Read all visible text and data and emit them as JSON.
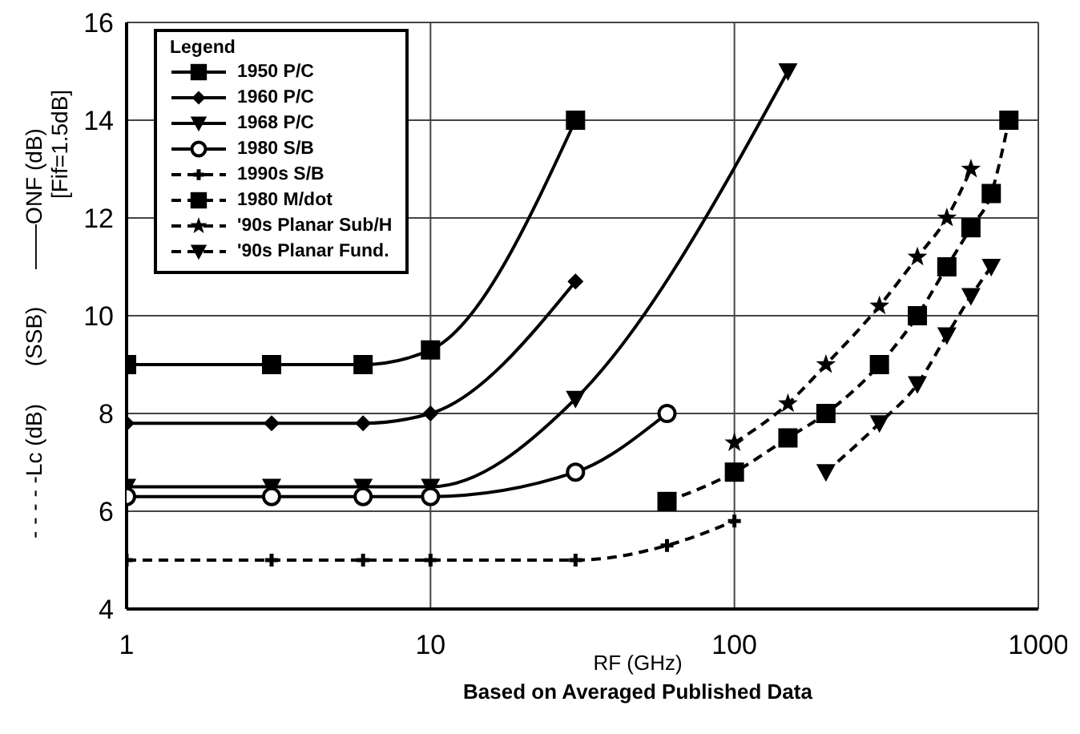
{
  "chart_data": {
    "type": "line",
    "xlabel": "RF (GHz)",
    "ylabel": "- - - - -Lc (dB)      (SSB)      ——ONF (dB)",
    "legend_title": "Legend",
    "legend": "top left",
    "grid": true,
    "log": "x",
    "xlim": [
      1,
      1000
    ],
    "xticks": [
      1,
      10,
      100,
      1000
    ],
    "ylim": [
      4,
      16
    ],
    "yticks": [
      4,
      6,
      8,
      10,
      12,
      14,
      16
    ],
    "annotations": [
      "[Fif=1.5dB]",
      "Based on Averaged Published Data"
    ],
    "series": [
      {
        "name": "1950 P/C",
        "color": "#000000",
        "marker": "square",
        "line_style": "solid",
        "x": [
          1,
          3,
          6,
          10,
          30
        ],
        "values": [
          9.0,
          9.0,
          9.0,
          9.3,
          14.0
        ]
      },
      {
        "name": "1960 P/C",
        "color": "#000000",
        "marker": "diamond",
        "line_style": "solid",
        "x": [
          1,
          3,
          6,
          10,
          30
        ],
        "values": [
          7.8,
          7.8,
          7.8,
          8.0,
          10.7
        ]
      },
      {
        "name": "1968 P/C",
        "color": "#000000",
        "marker": "triangle",
        "line_style": "solid",
        "x": [
          1,
          3,
          6,
          10,
          30,
          150
        ],
        "values": [
          6.5,
          6.5,
          6.5,
          6.5,
          8.3,
          15.0
        ]
      },
      {
        "name": "1980 S/B",
        "color": "#000000",
        "marker": "circle",
        "line_style": "solid",
        "x": [
          1,
          3,
          6,
          10,
          30,
          60
        ],
        "values": [
          6.3,
          6.3,
          6.3,
          6.3,
          6.8,
          8.0
        ]
      },
      {
        "name": "1990s S/B",
        "color": "#000000",
        "marker": "cross",
        "line_style": "dashed",
        "x": [
          1,
          3,
          6,
          10,
          30,
          60,
          100
        ],
        "values": [
          5.0,
          5.0,
          5.0,
          5.0,
          5.0,
          5.3,
          5.8
        ]
      },
      {
        "name": "1980 M/dot",
        "color": "#000000",
        "marker": "square",
        "line_style": "dashed",
        "x": [
          60,
          100,
          150,
          200,
          300,
          400,
          500,
          600,
          700,
          800
        ],
        "values": [
          6.2,
          6.8,
          7.5,
          8.0,
          9.0,
          10.0,
          11.0,
          11.8,
          12.5,
          14.0
        ]
      },
      {
        "name": "'90s Planar Sub/H",
        "color": "#000000",
        "marker": "star",
        "line_style": "dashed",
        "x": [
          100,
          150,
          200,
          300,
          400,
          500,
          600
        ],
        "values": [
          7.4,
          8.2,
          9.0,
          10.2,
          11.2,
          12.0,
          13.0
        ]
      },
      {
        "name": "'90s Planar Fund.",
        "color": "#000000",
        "marker": "triangle",
        "line_style": "dashed",
        "x": [
          200,
          300,
          400,
          500,
          600,
          700
        ],
        "values": [
          6.8,
          7.8,
          8.6,
          9.6,
          10.4,
          11.0
        ]
      }
    ]
  }
}
